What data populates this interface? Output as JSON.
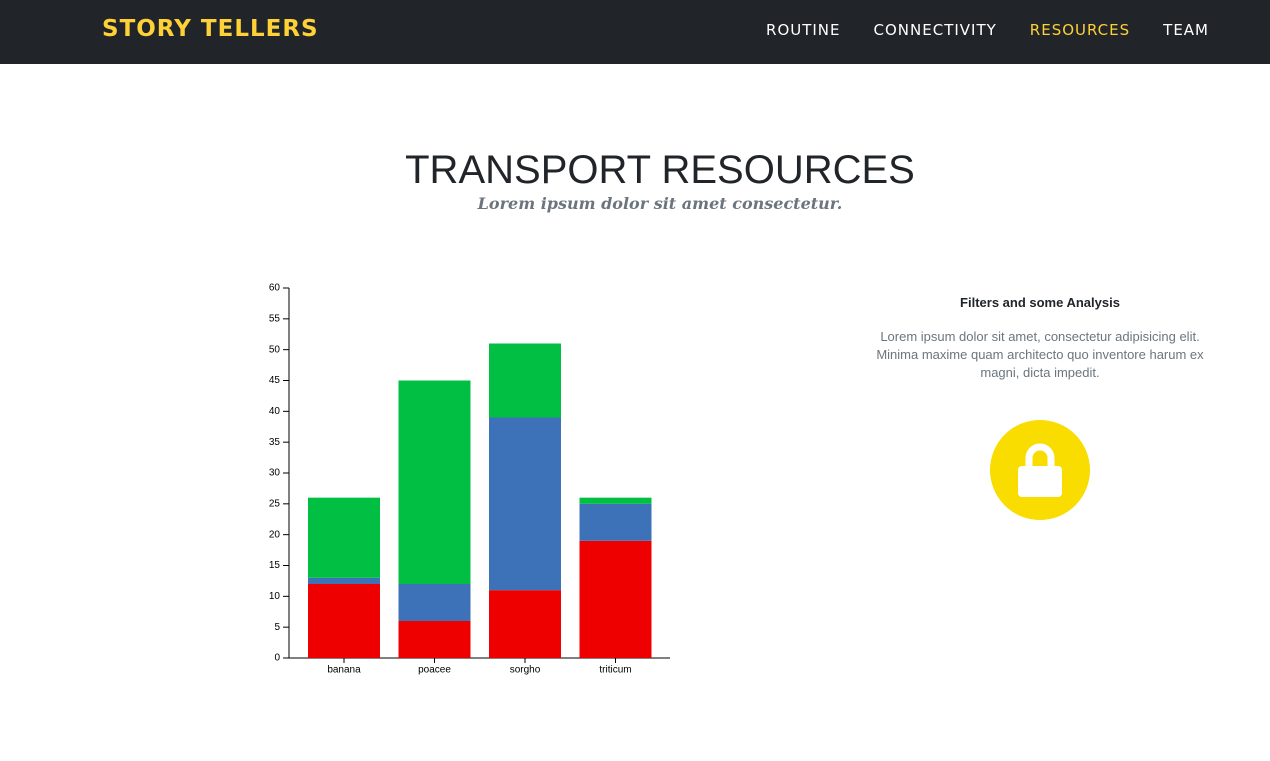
{
  "nav": {
    "brand": "STORY TELLERS",
    "items": [
      "ROUTINE",
      "CONNECTIVITY",
      "RESOURCES",
      "TEAM"
    ],
    "active": 2
  },
  "header": {
    "title": "TRANSPORT RESOURCES",
    "subtitle": "Lorem ipsum dolor sit amet consectetur."
  },
  "chart_data": {
    "type": "bar",
    "stacked": true,
    "categories": [
      "banana",
      "poacee",
      "sorgho",
      "triticum"
    ],
    "series": [
      {
        "color": "#ee0000",
        "values": [
          12,
          6,
          11,
          19
        ]
      },
      {
        "color": "#3d72b9",
        "values": [
          1,
          6,
          28,
          6
        ]
      },
      {
        "color": "#00bf43",
        "values": [
          13,
          33,
          12,
          1
        ]
      }
    ],
    "ylim": [
      0,
      60
    ],
    "yticks": [
      0,
      5,
      10,
      15,
      20,
      25,
      30,
      35,
      40,
      45,
      50,
      55,
      60
    ]
  },
  "panel": {
    "title": "Filters and some Analysis",
    "text": "Lorem ipsum dolor sit amet, consectetur adipisicing elit. Minima maxime quam architecto quo inventore harum ex magni, dicta impedit."
  }
}
